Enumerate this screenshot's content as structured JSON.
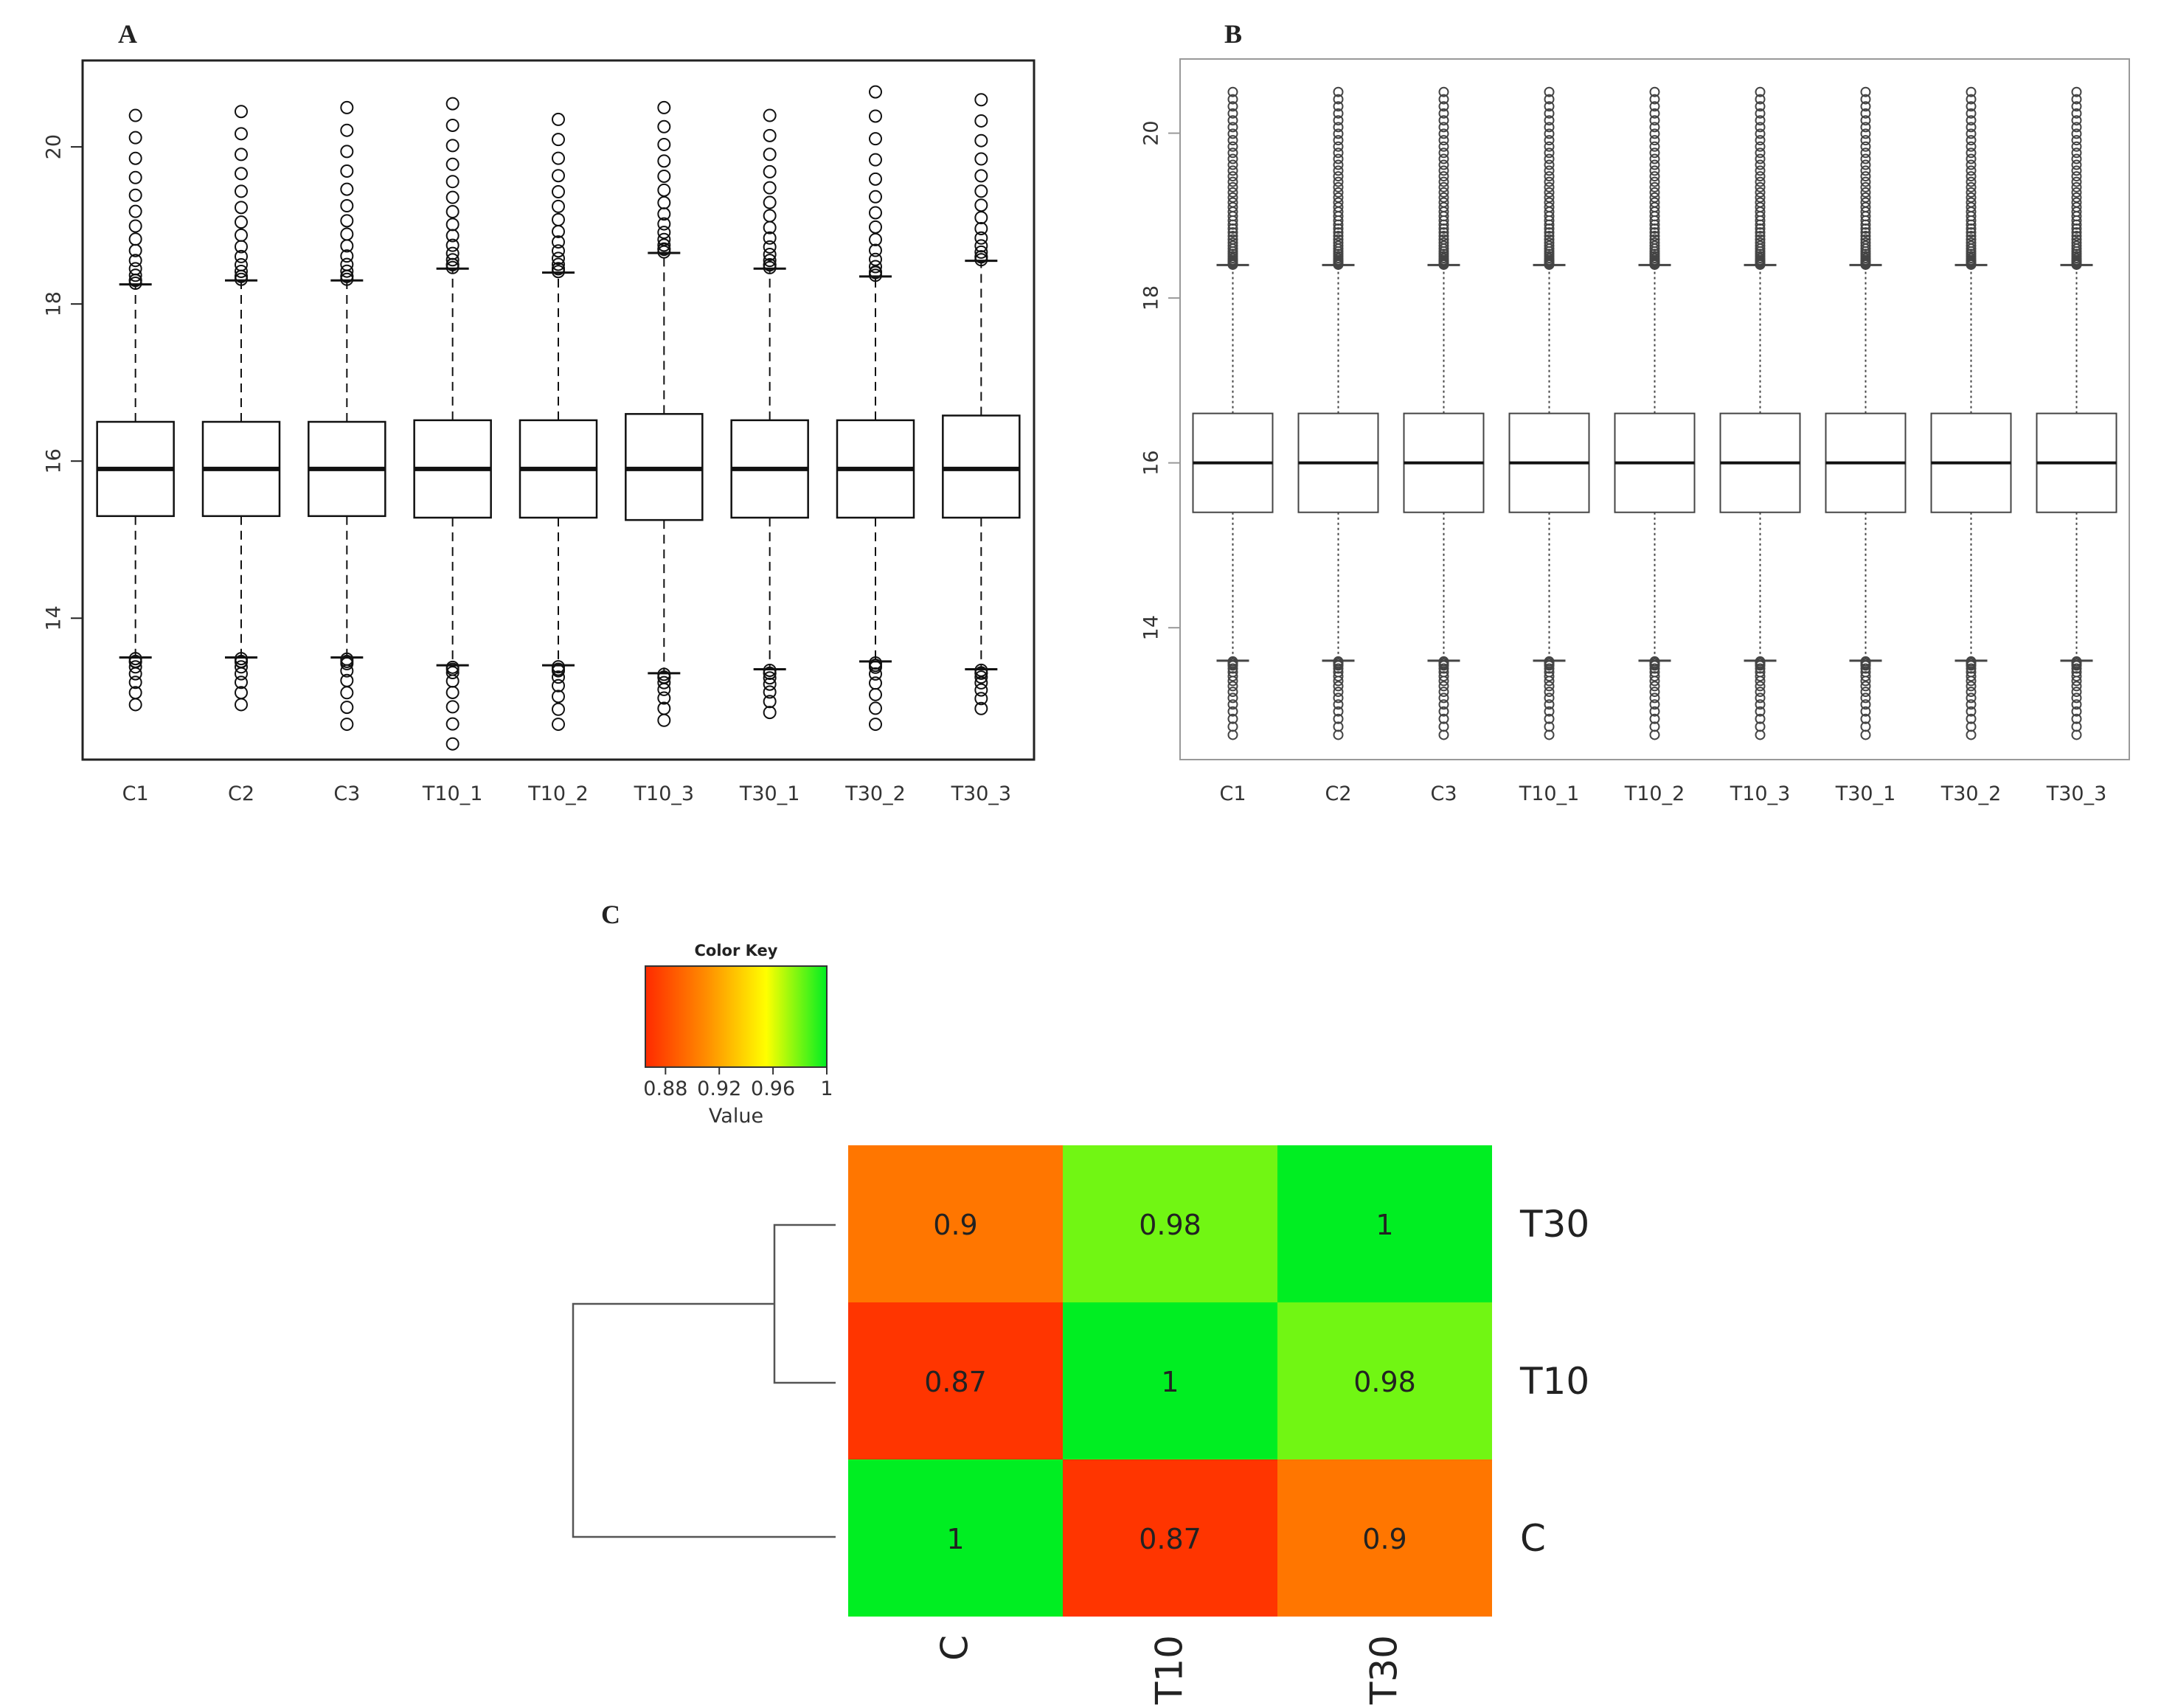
{
  "chart_data": [
    {
      "panel": "A",
      "type": "boxplot",
      "categories": [
        "C1",
        "C2",
        "C3",
        "T10_1",
        "T10_2",
        "T10_3",
        "T30_1",
        "T30_2",
        "T30_3"
      ],
      "yticks": [
        "14",
        "16",
        "18",
        "20"
      ],
      "ylim": [
        12.2,
        21.1
      ],
      "boxes": [
        {
          "q1": 15.3,
          "median": 15.9,
          "q3": 16.5,
          "whisker_low": 13.5,
          "whisker_high": 18.25,
          "outlier_max": 20.4,
          "outlier_min": 12.9
        },
        {
          "q1": 15.3,
          "median": 15.9,
          "q3": 16.5,
          "whisker_low": 13.5,
          "whisker_high": 18.3,
          "outlier_max": 20.45,
          "outlier_min": 12.9
        },
        {
          "q1": 15.3,
          "median": 15.9,
          "q3": 16.5,
          "whisker_low": 13.5,
          "whisker_high": 18.3,
          "outlier_max": 20.5,
          "outlier_min": 12.65
        },
        {
          "q1": 15.28,
          "median": 15.9,
          "q3": 16.52,
          "whisker_low": 13.4,
          "whisker_high": 18.45,
          "outlier_max": 20.55,
          "outlier_min": 12.4
        },
        {
          "q1": 15.28,
          "median": 15.9,
          "q3": 16.52,
          "whisker_low": 13.4,
          "whisker_high": 18.4,
          "outlier_max": 20.35,
          "outlier_min": 12.65
        },
        {
          "q1": 15.25,
          "median": 15.9,
          "q3": 16.6,
          "whisker_low": 13.3,
          "whisker_high": 18.65,
          "outlier_max": 20.5,
          "outlier_min": 12.7
        },
        {
          "q1": 15.28,
          "median": 15.9,
          "q3": 16.52,
          "whisker_low": 13.35,
          "whisker_high": 18.45,
          "outlier_max": 20.4,
          "outlier_min": 12.8
        },
        {
          "q1": 15.28,
          "median": 15.9,
          "q3": 16.52,
          "whisker_low": 13.45,
          "whisker_high": 18.35,
          "outlier_max": 20.7,
          "outlier_min": 12.65
        },
        {
          "q1": 15.28,
          "median": 15.9,
          "q3": 16.58,
          "whisker_low": 13.35,
          "whisker_high": 18.55,
          "outlier_max": 20.6,
          "outlier_min": 12.85
        }
      ]
    },
    {
      "panel": "B",
      "type": "boxplot",
      "categories": [
        "C1",
        "C2",
        "C3",
        "T10_1",
        "T10_2",
        "T10_3",
        "T30_1",
        "T30_2",
        "T30_3"
      ],
      "yticks": [
        "14",
        "16",
        "18",
        "20"
      ],
      "ylim": [
        12.4,
        20.9
      ],
      "boxes": [
        {
          "q1": 15.4,
          "median": 16.0,
          "q3": 16.6,
          "whisker_low": 13.6,
          "whisker_high": 18.4,
          "outlier_max": 20.5,
          "outlier_min": 12.7
        },
        {
          "q1": 15.4,
          "median": 16.0,
          "q3": 16.6,
          "whisker_low": 13.6,
          "whisker_high": 18.4,
          "outlier_max": 20.5,
          "outlier_min": 12.7
        },
        {
          "q1": 15.4,
          "median": 16.0,
          "q3": 16.6,
          "whisker_low": 13.6,
          "whisker_high": 18.4,
          "outlier_max": 20.5,
          "outlier_min": 12.7
        },
        {
          "q1": 15.4,
          "median": 16.0,
          "q3": 16.6,
          "whisker_low": 13.6,
          "whisker_high": 18.4,
          "outlier_max": 20.5,
          "outlier_min": 12.7
        },
        {
          "q1": 15.4,
          "median": 16.0,
          "q3": 16.6,
          "whisker_low": 13.6,
          "whisker_high": 18.4,
          "outlier_max": 20.5,
          "outlier_min": 12.7
        },
        {
          "q1": 15.4,
          "median": 16.0,
          "q3": 16.6,
          "whisker_low": 13.6,
          "whisker_high": 18.4,
          "outlier_max": 20.5,
          "outlier_min": 12.7
        },
        {
          "q1": 15.4,
          "median": 16.0,
          "q3": 16.6,
          "whisker_low": 13.6,
          "whisker_high": 18.4,
          "outlier_max": 20.5,
          "outlier_min": 12.7
        },
        {
          "q1": 15.4,
          "median": 16.0,
          "q3": 16.6,
          "whisker_low": 13.6,
          "whisker_high": 18.4,
          "outlier_max": 20.5,
          "outlier_min": 12.7
        },
        {
          "q1": 15.4,
          "median": 16.0,
          "q3": 16.6,
          "whisker_low": 13.6,
          "whisker_high": 18.4,
          "outlier_max": 20.5,
          "outlier_min": 12.7
        }
      ]
    },
    {
      "panel": "C",
      "type": "heatmap",
      "rows": [
        "T30",
        "T10",
        "C"
      ],
      "cols": [
        "C",
        "T10",
        "T30"
      ],
      "cells": [
        {
          "text": "0.9",
          "value": 0.9
        },
        {
          "text": "0.98",
          "value": 0.98
        },
        {
          "text": "1",
          "value": 1.0
        },
        {
          "text": "0.87",
          "value": 0.87
        },
        {
          "text": "1",
          "value": 1.0
        },
        {
          "text": "0.98",
          "value": 0.98
        },
        {
          "text": "1",
          "value": 1.0
        },
        {
          "text": "0.87",
          "value": 0.87
        },
        {
          "text": "0.9",
          "value": 0.9
        }
      ],
      "color_key": {
        "title": "Color Key",
        "xlabel": "Value",
        "ticks": [
          "0.88",
          "0.92",
          "0.96",
          "1"
        ],
        "range": [
          0.865,
          1.0
        ],
        "colors": [
          "#ff2a00",
          "#ff8c00",
          "#ffff00",
          "#00ee22"
        ]
      },
      "dendrogram": "((T30,T10),C)"
    }
  ],
  "panel_labels": {
    "a": "A",
    "b": "B",
    "c": "C"
  }
}
